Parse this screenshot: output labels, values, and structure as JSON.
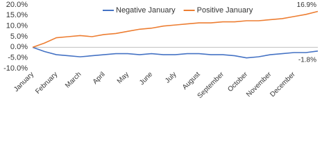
{
  "chart_data": {
    "type": "line",
    "categories": [
      "January",
      null,
      "February",
      null,
      "March",
      null,
      "April",
      null,
      "May",
      null,
      "June",
      null,
      "July",
      null,
      "August",
      null,
      "September",
      null,
      "October",
      null,
      "November",
      null,
      "December",
      null,
      null
    ],
    "series": [
      {
        "name": "Negative January",
        "color": "#4472c4",
        "values": [
          0,
          -2,
          -3.5,
          -4,
          -4.5,
          -4,
          -3.5,
          -3,
          -3,
          -3.5,
          -3,
          -3.5,
          -3.5,
          -3,
          -3,
          -3.5,
          -3.5,
          -4,
          -5,
          -4.5,
          -3.5,
          -3,
          -2.5,
          -2.5,
          -1.8
        ],
        "value_labels": [
          null,
          null,
          null,
          null,
          null,
          null,
          null,
          null,
          null,
          null,
          null,
          null,
          null,
          null,
          null,
          null,
          null,
          null,
          null,
          null,
          null,
          null,
          null,
          null,
          "-1.8%"
        ]
      },
      {
        "name": "Positive January",
        "color": "#ed7d31",
        "values": [
          0,
          2,
          4.5,
          5,
          5.5,
          5,
          6,
          6.5,
          7.5,
          8.5,
          9,
          10,
          10.5,
          11,
          11.5,
          11.5,
          12,
          12,
          12.5,
          12.5,
          13,
          13.5,
          14.5,
          15.5,
          16.9
        ],
        "value_labels": [
          null,
          null,
          null,
          null,
          null,
          null,
          null,
          null,
          null,
          null,
          null,
          null,
          null,
          null,
          null,
          null,
          null,
          null,
          null,
          null,
          null,
          null,
          null,
          null,
          "16.9%"
        ]
      }
    ],
    "ylim": [
      -10,
      20
    ],
    "yticks": [
      {
        "value": -10,
        "label": "-10.0%"
      },
      {
        "value": -5,
        "label": "-5.0%"
      },
      {
        "value": 0,
        "label": "0.0%"
      },
      {
        "value": 5,
        "label": "5.0%"
      },
      {
        "value": 10,
        "label": "10.0%"
      },
      {
        "value": 15,
        "label": "15.0%"
      },
      {
        "value": 20,
        "label": "20.0%"
      }
    ],
    "grid": false,
    "legend": "top"
  }
}
